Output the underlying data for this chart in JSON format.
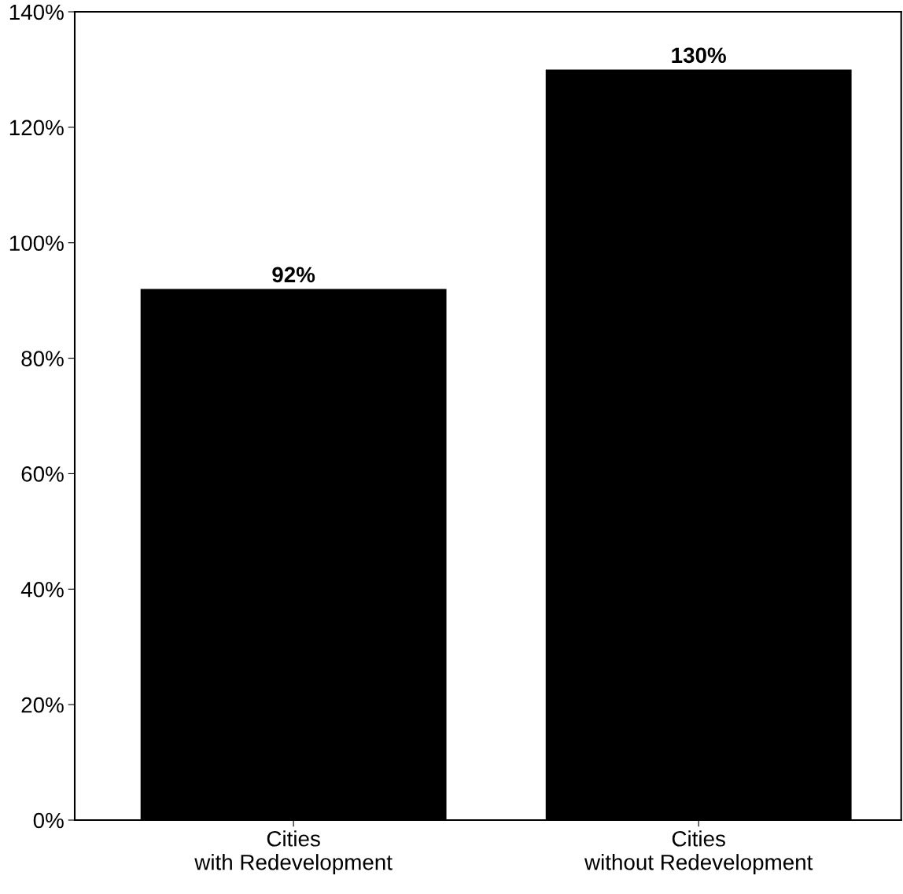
{
  "chart_data": {
    "type": "bar",
    "categories": [
      "Cities\nwith Redevelopment",
      "Cities\nwithout Redevelopment"
    ],
    "values": [
      92,
      130
    ],
    "value_labels": [
      "92%",
      "130%"
    ],
    "color": "#000000",
    "ylim": [
      0,
      140
    ],
    "yticks": [
      {
        "value": 0,
        "label": "0%"
      },
      {
        "value": 20,
        "label": "20%"
      },
      {
        "value": 40,
        "label": "40%"
      },
      {
        "value": 60,
        "label": "60%"
      },
      {
        "value": 80,
        "label": "80%"
      },
      {
        "value": 100,
        "label": "100%"
      },
      {
        "value": 120,
        "label": "120%"
      },
      {
        "value": 140,
        "label": "140%"
      }
    ],
    "grid": false,
    "legend": false
  }
}
